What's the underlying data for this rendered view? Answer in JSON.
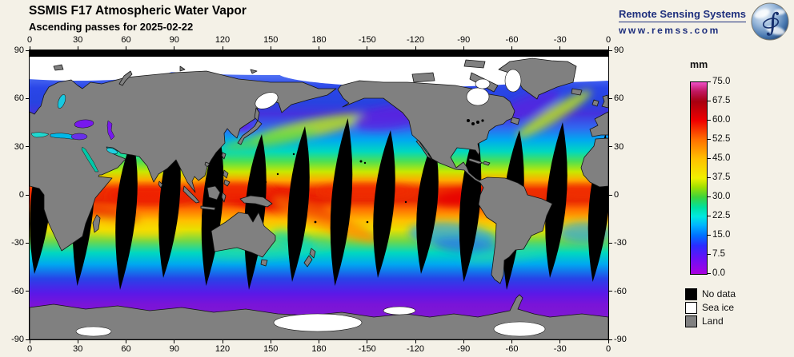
{
  "header": {
    "title": "SSMIS F17 Atmospheric Water Vapor",
    "subtitle": "Ascending passes for 2025-02-22"
  },
  "branding": {
    "name": "Remote Sensing Systems",
    "url": "www.remss.com",
    "navy": "#1e2f7d"
  },
  "map": {
    "lon_ticks": [
      "0",
      "30",
      "60",
      "90",
      "120",
      "150",
      "180",
      "-150",
      "-120",
      "-90",
      "-60",
      "-30",
      "0"
    ],
    "lat_ticks": [
      "90",
      "60",
      "30",
      "0",
      "-30",
      "-60",
      "-90"
    ]
  },
  "colorbar": {
    "unit": "mm",
    "min": 0.0,
    "max": 75.0,
    "tick_labels": [
      "75.0",
      "67.5",
      "60.0",
      "52.5",
      "45.0",
      "37.5",
      "30.0",
      "22.5",
      "15.0",
      "7.5",
      "0.0"
    ],
    "stops": [
      {
        "value": 0.0,
        "color": "#aa00e0"
      },
      {
        "value": 6.0,
        "color": "#6a10f5"
      },
      {
        "value": 11.0,
        "color": "#2b2bff"
      },
      {
        "value": 15.0,
        "color": "#0070ff"
      },
      {
        "value": 19.0,
        "color": "#00b4ff"
      },
      {
        "value": 22.5,
        "color": "#00e8e0"
      },
      {
        "value": 26.0,
        "color": "#00e0a0"
      },
      {
        "value": 30.0,
        "color": "#3cd43c"
      },
      {
        "value": 34.0,
        "color": "#a0e000"
      },
      {
        "value": 37.5,
        "color": "#f0f000"
      },
      {
        "value": 45.0,
        "color": "#ffc000"
      },
      {
        "value": 52.5,
        "color": "#ff7000"
      },
      {
        "value": 60.0,
        "color": "#f00000"
      },
      {
        "value": 67.5,
        "color": "#a80010"
      },
      {
        "value": 71.5,
        "color": "#c01860"
      },
      {
        "value": 75.0,
        "color": "#f050c8"
      }
    ]
  },
  "legend": {
    "items": [
      {
        "label": "No data",
        "color": "#000000"
      },
      {
        "label": "Sea ice",
        "color": "#ffffff"
      },
      {
        "label": "Land",
        "color": "#808080"
      }
    ]
  },
  "palette": {
    "background": "#f4f1e7",
    "land": "#808080",
    "coast_outline": "#151515",
    "no_data": "#000000",
    "sea_ice": "#ffffff"
  },
  "chart_data": {
    "type": "heatmap",
    "title": "SSMIS F17 Atmospheric Water Vapor",
    "subtitle": "Ascending passes for 2025-02-22",
    "units": "mm",
    "scale_range": [
      0.0,
      75.0
    ],
    "scale_tick_step": 7.5,
    "xlabel_ticks_deg_lon": [
      0,
      30,
      60,
      90,
      120,
      150,
      180,
      -150,
      -120,
      -90,
      -60,
      -30,
      0
    ],
    "ylabel_ticks_deg_lat": [
      90,
      60,
      30,
      0,
      -30,
      -60,
      -90
    ],
    "legend": [
      "No data",
      "Sea ice",
      "Land"
    ]
  }
}
